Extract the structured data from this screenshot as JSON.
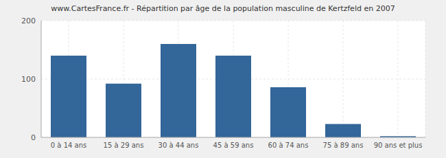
{
  "chart_data": {
    "type": "bar",
    "title": "www.CartesFrance.fr - Répartition par âge de la population masculine de Kertzfeld en 2007",
    "categories": [
      "0 à 14 ans",
      "15 à 29 ans",
      "30 à 44 ans",
      "45 à 59 ans",
      "60 à 74 ans",
      "75 à 89 ans",
      "90 ans et plus"
    ],
    "values": [
      140,
      92,
      160,
      140,
      86,
      23,
      2
    ],
    "color": "#336699",
    "ylim": [
      0,
      200
    ],
    "yticks": [
      0,
      100,
      200
    ],
    "grid": true
  }
}
